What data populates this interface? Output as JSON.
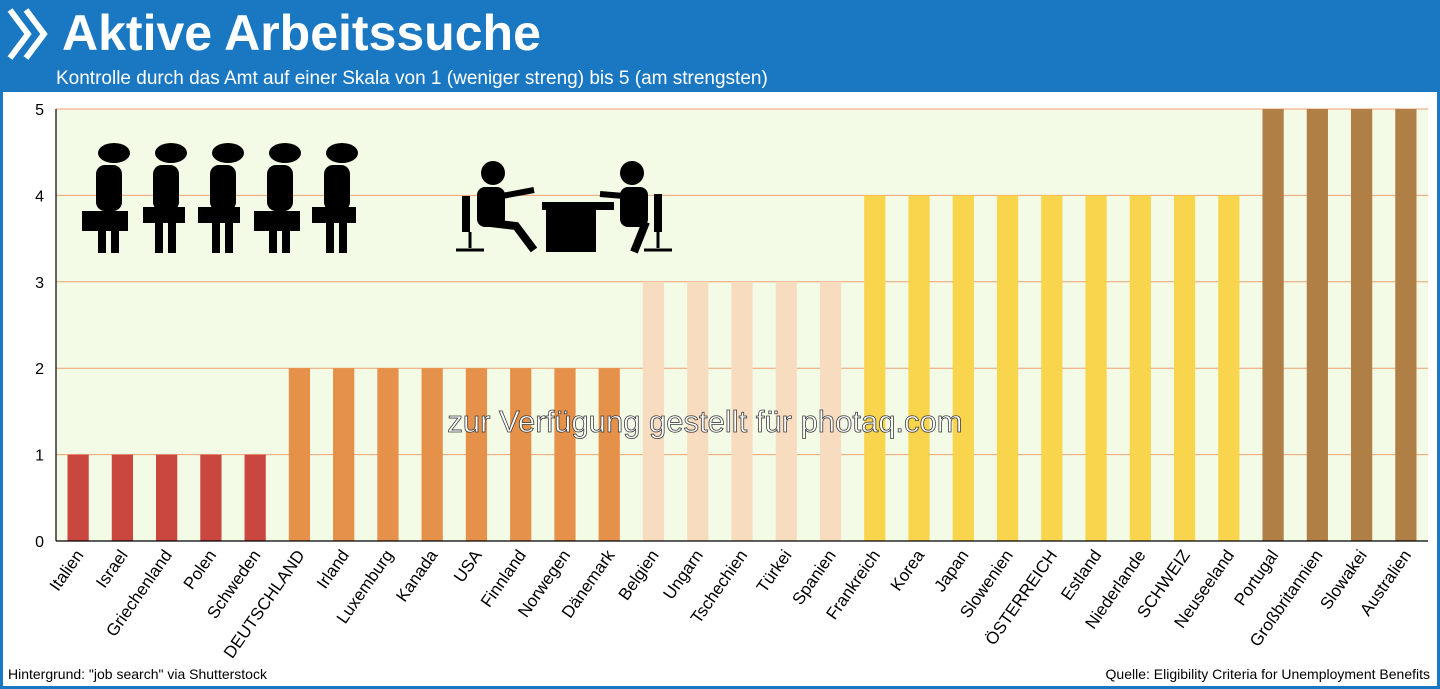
{
  "header": {
    "title": "Aktive Arbeitssuche",
    "subtitle": "Kontrolle durch das Amt auf einer Skala von 1 (weniger streng) bis 5 (am strengsten)",
    "logo_icon": "double-chevron-icon"
  },
  "watermark": "zur Verfügung gestellt für photaq.com",
  "footer": {
    "left": "Hintergrund: \"job search\" via Shutterstock",
    "right": "Quelle: Eligibility Criteria for Unemployment Benefits"
  },
  "illustrations": [
    "people-waiting-queue-icon",
    "office-desk-meeting-icon"
  ],
  "colors": {
    "header_bg": "#1a78c2",
    "plot_bg": "#f3fbe6",
    "gridline": "#f0a070",
    "score_1": "#c9473f",
    "score_2": "#e5914a",
    "score_3": "#f8dcc0",
    "score_4": "#f8d54c",
    "score_5": "#b07f45"
  },
  "chart_data": {
    "type": "bar",
    "categories": [
      "Italien",
      "Israel",
      "Griechenland",
      "Polen",
      "Schweden",
      "DEUTSCHLAND",
      "Irland",
      "Luxemburg",
      "Kanada",
      "USA",
      "Finnland",
      "Norwegen",
      "Dänemark",
      "Belgien",
      "Ungarn",
      "Tschechien",
      "Türkei",
      "Spanien",
      "Frankreich",
      "Korea",
      "Japan",
      "Slowenien",
      "ÖSTERREICH",
      "Estland",
      "Niederlande",
      "SCHWEIZ",
      "Neuseeland",
      "Portugal",
      "Großbritannien",
      "Slowakei",
      "Australien"
    ],
    "values": [
      1,
      1,
      1,
      1,
      1,
      2,
      2,
      2,
      2,
      2,
      2,
      2,
      2,
      3,
      3,
      3,
      3,
      3,
      4,
      4,
      4,
      4,
      4,
      4,
      4,
      4,
      4,
      5,
      5,
      5,
      5
    ],
    "ylim": [
      0,
      5
    ],
    "yticks": [
      "0",
      "1",
      "2",
      "3",
      "4",
      "5"
    ],
    "grid": true,
    "legend": "none"
  }
}
